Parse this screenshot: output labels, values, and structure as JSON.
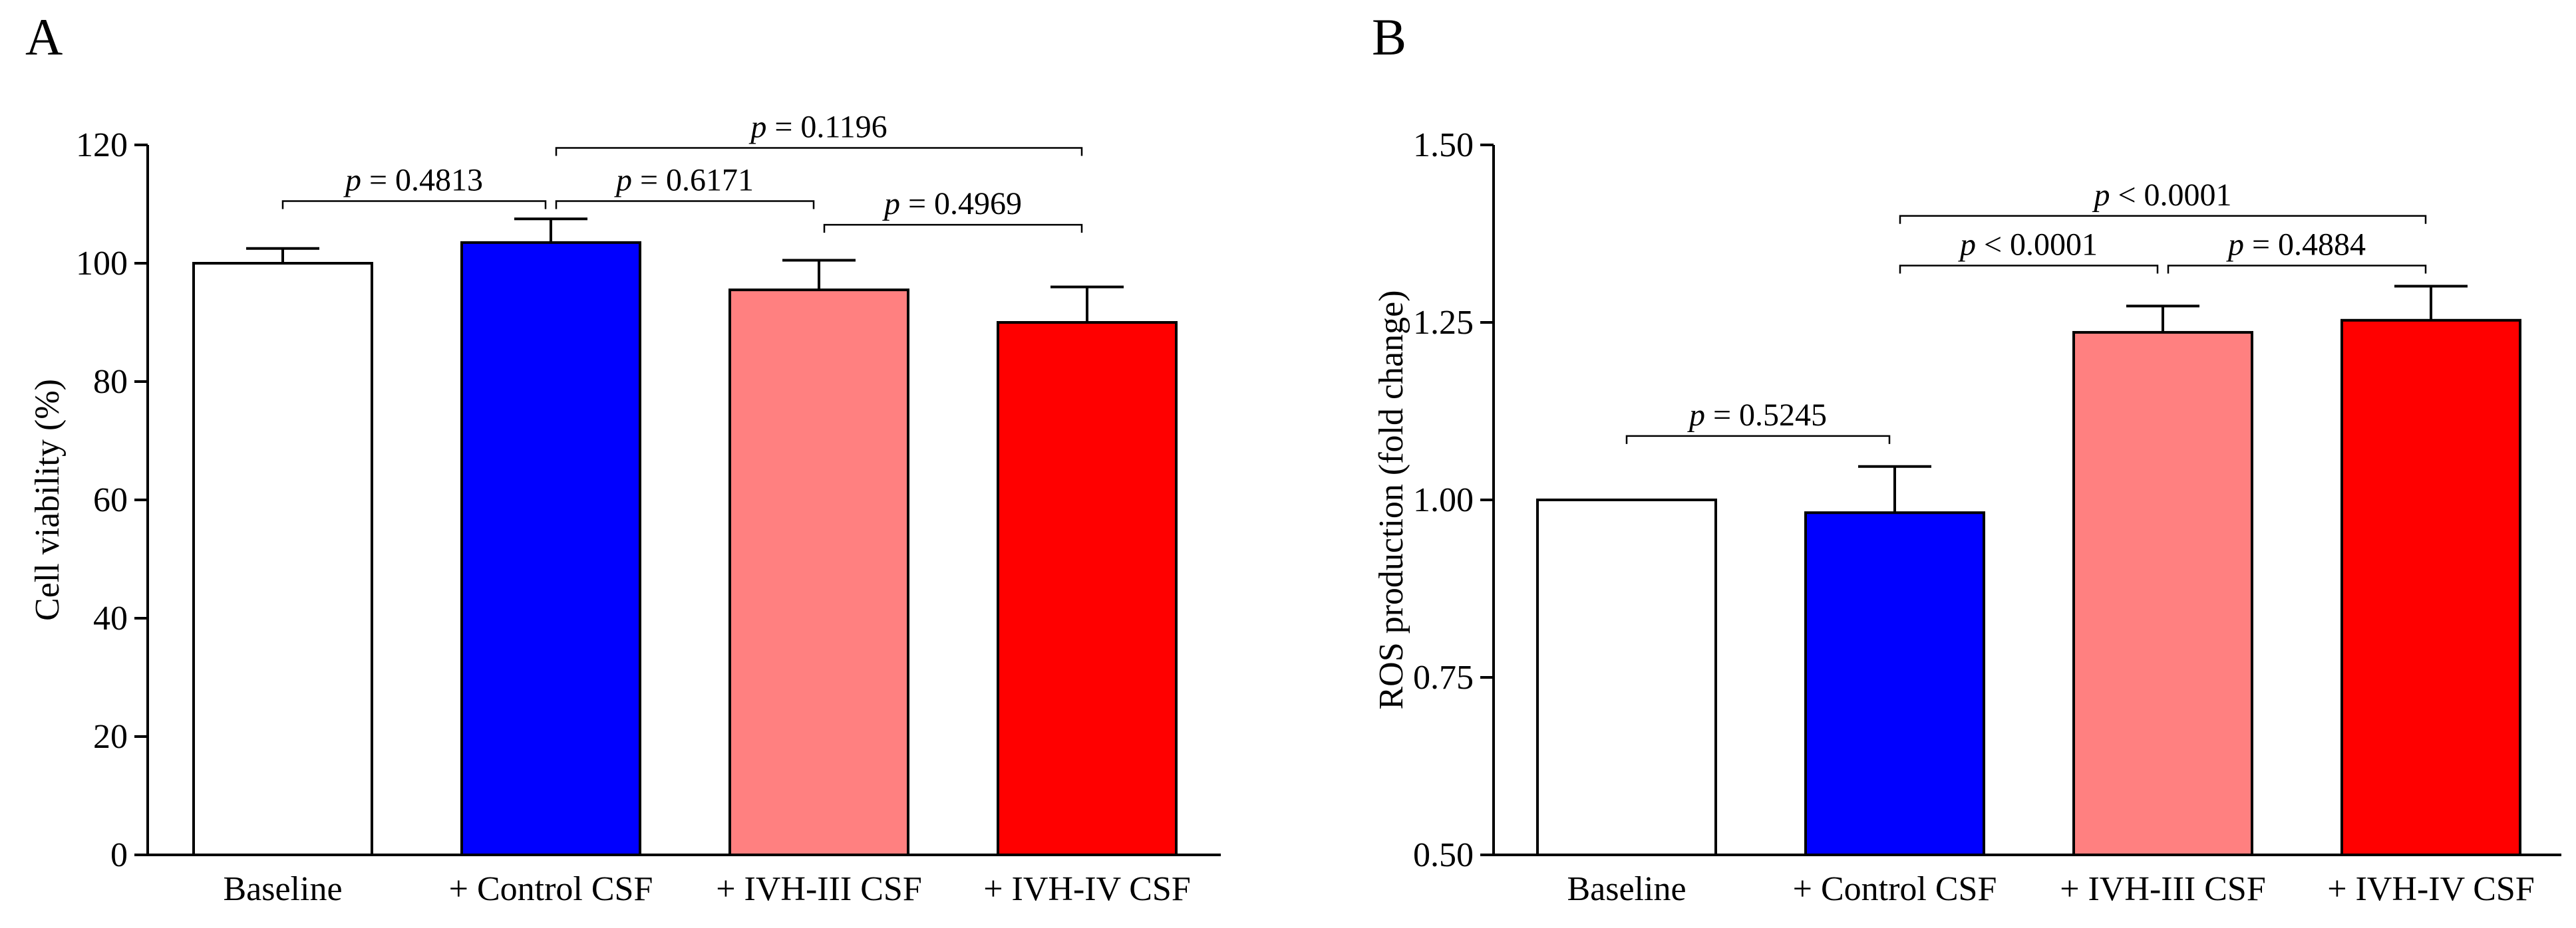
{
  "chart_data": [
    {
      "type": "bar",
      "panel": "A",
      "title": "",
      "xlabel": "",
      "ylabel": "Cell viability (%)",
      "ylim": [
        0,
        120
      ],
      "yticks": [
        0,
        20,
        40,
        60,
        80,
        100,
        120
      ],
      "ytick_labels": [
        "0",
        "20",
        "40",
        "60",
        "80",
        "100",
        "120"
      ],
      "categories": [
        "Baseline",
        "+ Control CSF",
        "+ IVH-III CSF",
        "+ IVH-IV CSF"
      ],
      "values": [
        100,
        103.5,
        95.5,
        90
      ],
      "errors": [
        2.5,
        4,
        5,
        6
      ],
      "colors": [
        "#ffffff",
        "#0000ff",
        "#ff8080",
        "#ff0000"
      ],
      "comparisons": [
        {
          "from": 0,
          "to": 1,
          "p_label": "p",
          "p_text": " = 0.4813",
          "y": 110.5
        },
        {
          "from": 1,
          "to": 2,
          "p_label": "p",
          "p_text": " = 0.6171",
          "y": 110.5
        },
        {
          "from": 1,
          "to": 3,
          "p_label": "p",
          "p_text": " = 0.1196",
          "y": 119.5
        },
        {
          "from": 2,
          "to": 3,
          "p_label": "p",
          "p_text": " = 0.4969",
          "y": 106.5
        }
      ]
    },
    {
      "type": "bar",
      "panel": "B",
      "title": "",
      "xlabel": "",
      "ylabel": "ROS production (fold change)",
      "ylim": [
        0.5,
        1.5
      ],
      "yticks": [
        0.5,
        0.75,
        1.0,
        1.25,
        1.5
      ],
      "ytick_labels": [
        "0.50",
        "0.75",
        "1.00",
        "1.25",
        "1.50"
      ],
      "categories": [
        "Baseline",
        "+ Control CSF",
        "+ IVH-III CSF",
        "+ IVH-IV CSF"
      ],
      "values": [
        1.0,
        0.982,
        1.236,
        1.253
      ],
      "errors": [
        0,
        0.065,
        0.037,
        0.048
      ],
      "colors": [
        "#ffffff",
        "#0000ff",
        "#ff8080",
        "#ff0000"
      ],
      "comparisons": [
        {
          "from": 0,
          "to": 1,
          "p_label": "p",
          "p_text": " = 0.5245",
          "y": 1.09
        },
        {
          "from": 1,
          "to": 2,
          "p_label": "p",
          "p_text": " < 0.0001",
          "y": 1.33
        },
        {
          "from": 1,
          "to": 3,
          "p_label": "p",
          "p_text": " < 0.0001",
          "y": 1.4
        },
        {
          "from": 2,
          "to": 3,
          "p_label": "p",
          "p_text": " = 0.4884",
          "y": 1.33
        }
      ]
    }
  ]
}
